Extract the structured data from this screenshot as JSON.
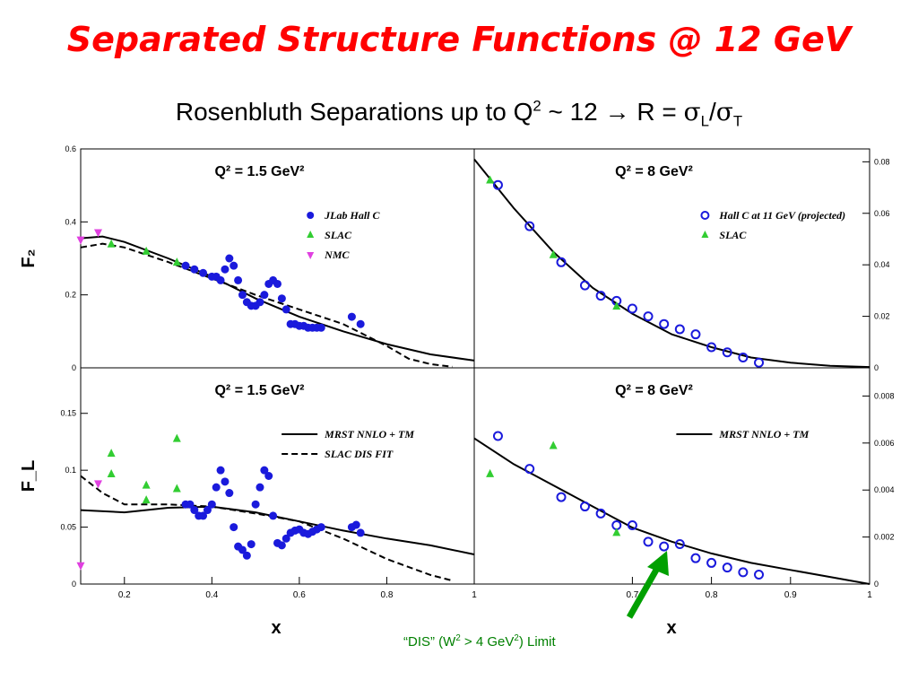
{
  "title": "Separated Structure Functions @ 12 GeV",
  "subtitle": {
    "prefix": "Rosenbluth Separations up to Q",
    "exp": "2",
    "mid": " ~ 12 ",
    "arrow": "→",
    "r": " R = ",
    "sigma1": "σ",
    "subL": "L",
    "slash": "/",
    "sigma2": "σ",
    "subT": "T"
  },
  "dis_note": {
    "part1": "“DIS” (W",
    "exp1": "2",
    "part2": " > 4 GeV",
    "exp2": "2",
    "part3": ") Limit"
  },
  "colors": {
    "title": "#ff0000",
    "jlab": "#1a1adc",
    "slac": "#32cd32",
    "nmc": "#e040e0",
    "arrow": "#00a000"
  },
  "chart_data": [
    {
      "type": "scatter",
      "panel": "top-left",
      "title": "Q² = 1.5 GeV²",
      "ylabel": "F₂",
      "xlim": [
        0.1,
        1.0
      ],
      "ylim": [
        0,
        0.6
      ],
      "yticks": [
        "0",
        "0.2",
        "0.4",
        "0.6"
      ],
      "legend": [
        "JLab Hall C",
        "SLAC",
        "NMC"
      ],
      "legend_position": "top-right",
      "series": [
        {
          "name": "JLab Hall C",
          "marker": "circle-filled",
          "x": [
            0.34,
            0.36,
            0.38,
            0.4,
            0.41,
            0.42,
            0.43,
            0.44,
            0.45,
            0.46,
            0.47,
            0.48,
            0.49,
            0.5,
            0.51,
            0.52,
            0.53,
            0.54,
            0.55,
            0.56,
            0.57,
            0.58,
            0.59,
            0.6,
            0.61,
            0.62,
            0.63,
            0.64,
            0.65,
            0.72,
            0.74
          ],
          "y": [
            0.28,
            0.27,
            0.26,
            0.25,
            0.25,
            0.24,
            0.27,
            0.3,
            0.28,
            0.24,
            0.2,
            0.18,
            0.17,
            0.17,
            0.18,
            0.2,
            0.23,
            0.24,
            0.23,
            0.19,
            0.16,
            0.12,
            0.12,
            0.115,
            0.115,
            0.11,
            0.11,
            0.11,
            0.11,
            0.14,
            0.12
          ]
        },
        {
          "name": "SLAC",
          "marker": "triangle-up",
          "x": [
            0.17,
            0.25,
            0.32
          ],
          "y": [
            0.34,
            0.32,
            0.29
          ]
        },
        {
          "name": "NMC",
          "marker": "triangle-down",
          "x": [
            0.1,
            0.14
          ],
          "y": [
            0.35,
            0.37
          ]
        }
      ],
      "curves": [
        {
          "name": "MRST NNLO + TM",
          "style": "solid",
          "x": [
            0.1,
            0.15,
            0.2,
            0.3,
            0.4,
            0.5,
            0.6,
            0.7,
            0.8,
            0.9,
            1.0
          ],
          "y": [
            0.355,
            0.36,
            0.345,
            0.3,
            0.25,
            0.19,
            0.14,
            0.1,
            0.065,
            0.037,
            0.02
          ]
        },
        {
          "name": "SLAC DIS FIT",
          "style": "dashed",
          "x": [
            0.1,
            0.15,
            0.2,
            0.3,
            0.4,
            0.5,
            0.6,
            0.7,
            0.8,
            0.85,
            0.9,
            0.95
          ],
          "y": [
            0.33,
            0.34,
            0.33,
            0.29,
            0.245,
            0.2,
            0.16,
            0.12,
            0.06,
            0.025,
            0.01,
            0.003
          ]
        }
      ]
    },
    {
      "type": "scatter",
      "panel": "top-right",
      "title": "Q² = 8 GeV²",
      "xlim": [
        0.5,
        1.0
      ],
      "ylim": [
        0,
        0.085
      ],
      "yticks": [
        "0",
        "0.02",
        "0.04",
        "0.06",
        "0.08"
      ],
      "legend": [
        "Hall C at 11 GeV (projected)",
        "SLAC"
      ],
      "legend_position": "top-right",
      "series": [
        {
          "name": "Hall C at 11 GeV (projected)",
          "marker": "circle-open",
          "x": [
            0.53,
            0.57,
            0.61,
            0.64,
            0.66,
            0.68,
            0.7,
            0.72,
            0.74,
            0.76,
            0.78,
            0.8,
            0.82,
            0.84,
            0.86
          ],
          "y": [
            0.071,
            0.055,
            0.041,
            0.032,
            0.028,
            0.026,
            0.023,
            0.02,
            0.017,
            0.015,
            0.013,
            0.008,
            0.006,
            0.004,
            0.002
          ]
        },
        {
          "name": "SLAC",
          "marker": "triangle-up",
          "x": [
            0.52,
            0.6,
            0.68
          ],
          "y": [
            0.073,
            0.044,
            0.024
          ]
        }
      ],
      "curves": [
        {
          "name": "MRST NNLO + TM",
          "style": "solid",
          "x": [
            0.5,
            0.55,
            0.6,
            0.65,
            0.7,
            0.75,
            0.8,
            0.85,
            0.9,
            0.95,
            1.0
          ],
          "y": [
            0.081,
            0.062,
            0.045,
            0.031,
            0.021,
            0.013,
            0.008,
            0.004,
            0.002,
            0.0008,
            0.0003
          ]
        }
      ]
    },
    {
      "type": "scatter",
      "panel": "bottom-left",
      "title": "Q² = 1.5 GeV²",
      "ylabel": "F_L",
      "xlim": [
        0.1,
        1.0
      ],
      "ylim": [
        0,
        0.19
      ],
      "xticks": [
        "0.2",
        "0.4",
        "0.6",
        "0.8",
        "1"
      ],
      "yticks": [
        "0",
        "0.05",
        "0.1",
        "0.15"
      ],
      "legend": [
        "MRST NNLO + TM",
        "SLAC DIS FIT"
      ],
      "legend_position": "top-right",
      "series": [
        {
          "name": "JLab Hall C",
          "marker": "circle-filled",
          "x": [
            0.34,
            0.35,
            0.36,
            0.37,
            0.38,
            0.39,
            0.4,
            0.41,
            0.42,
            0.43,
            0.44,
            0.45,
            0.46,
            0.47,
            0.48,
            0.49,
            0.5,
            0.51,
            0.52,
            0.53,
            0.54,
            0.55,
            0.56,
            0.57,
            0.58,
            0.59,
            0.6,
            0.61,
            0.62,
            0.63,
            0.64,
            0.65,
            0.72,
            0.73,
            0.74
          ],
          "y": [
            0.07,
            0.07,
            0.065,
            0.06,
            0.06,
            0.065,
            0.07,
            0.085,
            0.1,
            0.09,
            0.08,
            0.05,
            0.033,
            0.03,
            0.025,
            0.035,
            0.07,
            0.085,
            0.1,
            0.095,
            0.06,
            0.036,
            0.034,
            0.04,
            0.045,
            0.047,
            0.048,
            0.045,
            0.044,
            0.046,
            0.048,
            0.05,
            0.05,
            0.052,
            0.045
          ]
        },
        {
          "name": "SLAC",
          "marker": "triangle-up",
          "x": [
            0.17,
            0.17,
            0.25,
            0.25,
            0.32,
            0.32
          ],
          "y": [
            0.115,
            0.097,
            0.087,
            0.074,
            0.128,
            0.084
          ]
        },
        {
          "name": "NMC",
          "marker": "triangle-down",
          "x": [
            0.1,
            0.14
          ],
          "y": [
            0.016,
            0.088
          ]
        }
      ],
      "curves": [
        {
          "name": "MRST NNLO + TM",
          "style": "solid",
          "x": [
            0.1,
            0.2,
            0.3,
            0.4,
            0.5,
            0.6,
            0.7,
            0.8,
            0.9,
            1.0
          ],
          "y": [
            0.065,
            0.063,
            0.067,
            0.068,
            0.063,
            0.055,
            0.047,
            0.04,
            0.034,
            0.026
          ]
        },
        {
          "name": "SLAC DIS FIT",
          "style": "dashed",
          "x": [
            0.1,
            0.15,
            0.2,
            0.3,
            0.4,
            0.5,
            0.6,
            0.7,
            0.8,
            0.9,
            0.95
          ],
          "y": [
            0.095,
            0.08,
            0.07,
            0.07,
            0.068,
            0.062,
            0.055,
            0.04,
            0.022,
            0.008,
            0.003
          ]
        }
      ]
    },
    {
      "type": "scatter",
      "panel": "bottom-right",
      "title": "Q² = 8 GeV²",
      "xlabel": "x",
      "xlim": [
        0.5,
        1.0
      ],
      "ylim": [
        0,
        0.0092
      ],
      "xticks": [
        "0.7",
        "0.8",
        "0.9",
        "1"
      ],
      "yticks": [
        "0",
        "0.002",
        "0.004",
        "0.006",
        "0.008"
      ],
      "legend": [
        "MRST NNLO + TM"
      ],
      "legend_position": "top-right",
      "series": [
        {
          "name": "Hall C at 11 GeV (projected)",
          "marker": "circle-open",
          "x": [
            0.53,
            0.57,
            0.61,
            0.64,
            0.66,
            0.68,
            0.7,
            0.72,
            0.74,
            0.76,
            0.78,
            0.8,
            0.82,
            0.84,
            0.86
          ],
          "y": [
            0.0063,
            0.0049,
            0.0037,
            0.0033,
            0.003,
            0.0025,
            0.0025,
            0.0018,
            0.0016,
            0.0017,
            0.0011,
            0.0009,
            0.0007,
            0.0005,
            0.0004
          ]
        },
        {
          "name": "SLAC",
          "marker": "triangle-up",
          "x": [
            0.52,
            0.6,
            0.68
          ],
          "y": [
            0.0047,
            0.0059,
            0.0022
          ]
        }
      ],
      "curves": [
        {
          "name": "MRST NNLO + TM",
          "style": "solid",
          "x": [
            0.5,
            0.55,
            0.6,
            0.65,
            0.7,
            0.75,
            0.8,
            0.85,
            0.9,
            0.95,
            1.0
          ],
          "y": [
            0.0062,
            0.0051,
            0.0042,
            0.0033,
            0.0024,
            0.0018,
            0.0013,
            0.0009,
            0.0006,
            0.0003,
            0.0
          ]
        }
      ]
    }
  ],
  "xlabel_left": "x",
  "xlabel_right": "x"
}
